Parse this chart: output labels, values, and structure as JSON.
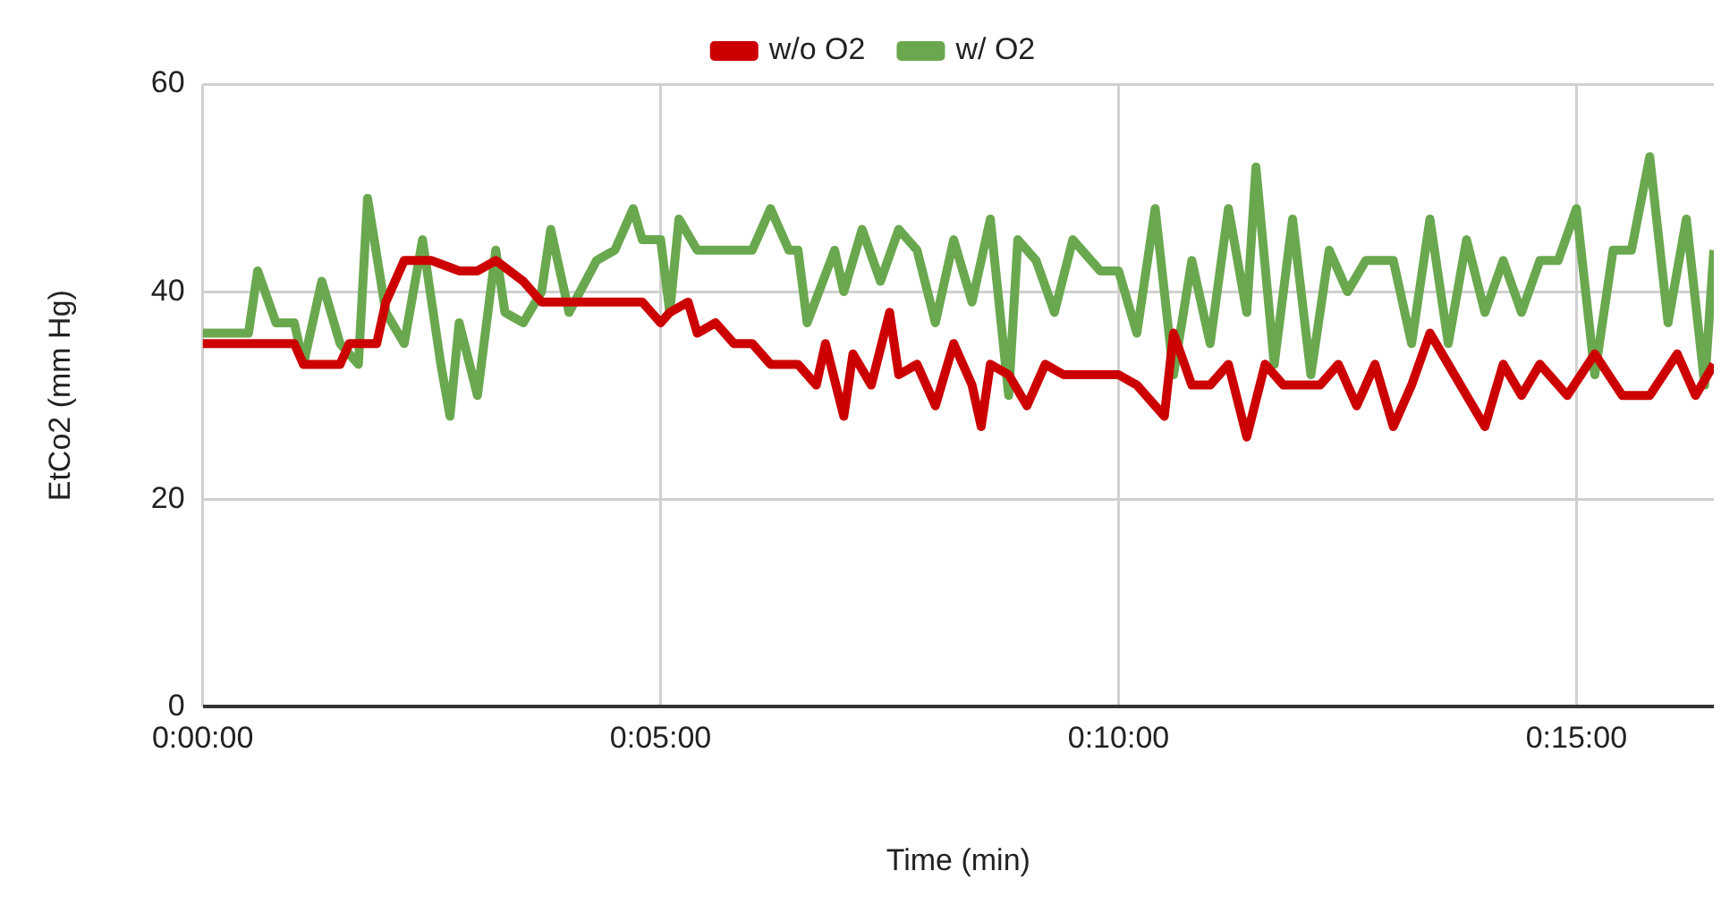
{
  "chart_data": {
    "type": "line",
    "xlabel": "Time (min)",
    "ylabel": "EtCo2 (mm Hg)",
    "legend": "top",
    "grid": true,
    "marker": "none",
    "line_style": "solid",
    "xlim": [
      0,
      16.5
    ],
    "xticks": [
      {
        "value": 0,
        "label": "0:00:00"
      },
      {
        "value": 5,
        "label": "0:05:00"
      },
      {
        "value": 10,
        "label": "0:10:00"
      },
      {
        "value": 15,
        "label": "0:15:00"
      }
    ],
    "ylim": [
      0,
      60
    ],
    "yticks": [
      0,
      20,
      40,
      60
    ],
    "series": [
      {
        "name": "w/o O2",
        "color": "#cc0000",
        "x": [
          0,
          0.5,
          1,
          1.1,
          1.3,
          1.5,
          1.6,
          1.9,
          2,
          2.2,
          2.5,
          2.8,
          3,
          3.2,
          3.5,
          3.7,
          4,
          4.5,
          4.8,
          5,
          5.1,
          5.3,
          5.4,
          5.6,
          5.8,
          6,
          6.2,
          6.5,
          6.7,
          6.8,
          7,
          7.1,
          7.3,
          7.5,
          7.6,
          7.8,
          8,
          8.2,
          8.4,
          8.5,
          8.6,
          8.8,
          9,
          9.2,
          9.4,
          9.6,
          10,
          10.2,
          10.5,
          10.6,
          10.8,
          11,
          11.2,
          11.4,
          11.6,
          11.8,
          12,
          12.2,
          12.4,
          12.6,
          12.8,
          13,
          13.2,
          13.4,
          13.6,
          13.8,
          14,
          14.2,
          14.4,
          14.6,
          14.9,
          15.2,
          15.5,
          15.8,
          16.1,
          16.3,
          16.5
        ],
        "values": [
          35,
          35,
          35,
          33,
          33,
          33,
          35,
          35,
          39,
          43,
          43,
          42,
          42,
          43,
          41,
          39,
          39,
          39,
          39,
          37,
          38,
          39,
          36,
          37,
          35,
          35,
          33,
          33,
          31,
          35,
          28,
          34,
          31,
          38,
          32,
          33,
          29,
          35,
          31,
          27,
          33,
          32,
          29,
          33,
          32,
          32,
          32,
          31,
          28,
          36,
          31,
          31,
          33,
          26,
          33,
          31,
          31,
          31,
          33,
          29,
          33,
          27,
          31,
          36,
          33,
          30,
          27,
          33,
          30,
          33,
          30,
          34,
          30,
          30,
          34,
          30,
          33
        ]
      },
      {
        "name": "w/ O2",
        "color": "#6aa84f",
        "x": [
          0,
          0.3,
          0.5,
          0.6,
          0.8,
          1,
          1.1,
          1.3,
          1.5,
          1.7,
          1.8,
          2,
          2.2,
          2.4,
          2.6,
          2.7,
          2.8,
          3,
          3.2,
          3.3,
          3.5,
          3.7,
          3.8,
          4,
          4.3,
          4.5,
          4.7,
          4.8,
          5,
          5.1,
          5.2,
          5.4,
          5.6,
          6,
          6.2,
          6.4,
          6.5,
          6.6,
          6.9,
          7,
          7.2,
          7.4,
          7.6,
          7.8,
          8,
          8.2,
          8.4,
          8.6,
          8.8,
          8.9,
          9.1,
          9.3,
          9.5,
          9.8,
          10,
          10.2,
          10.4,
          10.6,
          10.8,
          11,
          11.2,
          11.4,
          11.5,
          11.7,
          11.9,
          12.1,
          12.3,
          12.5,
          12.7,
          13,
          13.2,
          13.4,
          13.6,
          13.8,
          14,
          14.2,
          14.4,
          14.6,
          14.8,
          15,
          15.2,
          15.4,
          15.6,
          15.8,
          16,
          16.2,
          16.4,
          16.5
        ],
        "values": [
          36,
          36,
          36,
          42,
          37,
          37,
          33,
          41,
          35,
          33,
          49,
          38,
          35,
          45,
          33,
          28,
          37,
          30,
          44,
          38,
          37,
          40,
          46,
          38,
          43,
          44,
          48,
          45,
          45,
          38,
          47,
          44,
          44,
          44,
          48,
          44,
          44,
          37,
          44,
          40,
          46,
          41,
          46,
          44,
          37,
          45,
          39,
          47,
          30,
          45,
          43,
          38,
          45,
          42,
          42,
          36,
          48,
          32,
          43,
          35,
          48,
          38,
          52,
          33,
          47,
          32,
          44,
          40,
          43,
          43,
          35,
          47,
          35,
          45,
          38,
          43,
          38,
          43,
          43,
          48,
          32,
          44,
          44,
          53,
          37,
          47,
          31,
          44
        ]
      }
    ]
  }
}
